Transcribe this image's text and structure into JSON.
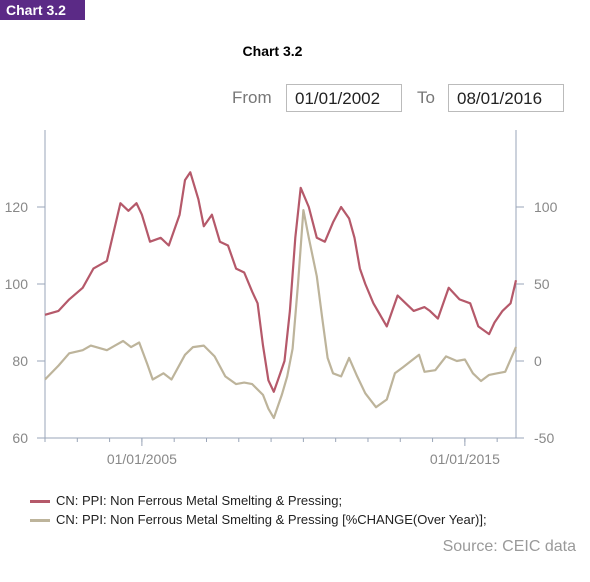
{
  "badge": "Chart 3.2",
  "controls": {
    "from_label": "From",
    "from_value": "01/01/2002",
    "to_label": "To",
    "to_value": "08/01/2016"
  },
  "source": "Source: CEIC data",
  "colors": {
    "ppi": "#b5596a",
    "yoy": "#bdb49b",
    "axis": "#9aa5b8"
  },
  "chart_data": {
    "type": "line",
    "title": "Chart 3.2",
    "x_range": [
      "01/01/2002",
      "08/01/2016"
    ],
    "x_ticks": [
      "01/01/2005",
      "01/01/2015"
    ],
    "y_left": {
      "ticks": [
        60,
        80,
        100,
        120
      ],
      "range": [
        60,
        140
      ]
    },
    "y_right": {
      "ticks": [
        -50,
        0,
        50,
        100
      ],
      "range": [
        -50,
        150
      ]
    },
    "grid": false,
    "legend": "bottom",
    "series": [
      {
        "name": "CN: PPI: Non Ferrous Metal Smelting & Pressing;",
        "axis": "left",
        "points": [
          [
            "2002-01",
            92
          ],
          [
            "2002-06",
            93
          ],
          [
            "2002-10",
            96
          ],
          [
            "2003-03",
            99
          ],
          [
            "2003-07",
            104
          ],
          [
            "2003-12",
            106
          ],
          [
            "2004-02",
            112
          ],
          [
            "2004-05",
            121
          ],
          [
            "2004-08",
            119
          ],
          [
            "2004-11",
            121
          ],
          [
            "2005-01",
            118
          ],
          [
            "2005-04",
            111
          ],
          [
            "2005-08",
            112
          ],
          [
            "2005-11",
            110
          ],
          [
            "2006-03",
            118
          ],
          [
            "2006-05",
            127
          ],
          [
            "2006-07",
            129
          ],
          [
            "2006-10",
            122
          ],
          [
            "2006-12",
            115
          ],
          [
            "2007-03",
            118
          ],
          [
            "2007-06",
            111
          ],
          [
            "2007-09",
            110
          ],
          [
            "2007-12",
            104
          ],
          [
            "2008-03",
            103
          ],
          [
            "2008-06",
            98
          ],
          [
            "2008-08",
            95
          ],
          [
            "2008-10",
            84
          ],
          [
            "2008-12",
            75
          ],
          [
            "2009-02",
            72
          ],
          [
            "2009-04",
            76
          ],
          [
            "2009-06",
            80
          ],
          [
            "2009-08",
            93
          ],
          [
            "2009-10",
            112
          ],
          [
            "2009-12",
            125
          ],
          [
            "2010-03",
            120
          ],
          [
            "2010-06",
            112
          ],
          [
            "2010-09",
            111
          ],
          [
            "2010-12",
            116
          ],
          [
            "2011-03",
            120
          ],
          [
            "2011-06",
            117
          ],
          [
            "2011-08",
            112
          ],
          [
            "2011-10",
            104
          ],
          [
            "2011-12",
            100
          ],
          [
            "2012-03",
            95
          ],
          [
            "2012-08",
            89
          ],
          [
            "2012-12",
            97
          ],
          [
            "2013-03",
            95
          ],
          [
            "2013-06",
            93
          ],
          [
            "2013-10",
            94
          ],
          [
            "2013-12",
            93
          ],
          [
            "2014-03",
            91
          ],
          [
            "2014-07",
            99
          ],
          [
            "2014-11",
            96
          ],
          [
            "2015-03",
            95
          ],
          [
            "2015-06",
            89
          ],
          [
            "2015-10",
            87
          ],
          [
            "2015-12",
            90
          ],
          [
            "2016-03",
            93
          ],
          [
            "2016-06",
            95
          ],
          [
            "2016-08",
            101
          ]
        ]
      },
      {
        "name": "CN: PPI: Non Ferrous Metal Smelting & Pressing [%CHANGE(Over Year)];",
        "axis": "right",
        "points": [
          [
            "2002-01",
            -12
          ],
          [
            "2002-06",
            -3
          ],
          [
            "2002-10",
            5
          ],
          [
            "2003-03",
            7
          ],
          [
            "2003-06",
            10
          ],
          [
            "2003-12",
            7
          ],
          [
            "2004-03",
            10
          ],
          [
            "2004-06",
            13
          ],
          [
            "2004-09",
            9
          ],
          [
            "2004-12",
            12
          ],
          [
            "2005-03",
            -2
          ],
          [
            "2005-05",
            -12
          ],
          [
            "2005-09",
            -8
          ],
          [
            "2005-12",
            -12
          ],
          [
            "2006-05",
            4
          ],
          [
            "2006-08",
            9
          ],
          [
            "2006-12",
            10
          ],
          [
            "2007-04",
            3
          ],
          [
            "2007-08",
            -10
          ],
          [
            "2007-12",
            -15
          ],
          [
            "2008-03",
            -14
          ],
          [
            "2008-06",
            -15
          ],
          [
            "2008-10",
            -22
          ],
          [
            "2008-12",
            -31
          ],
          [
            "2009-02",
            -37
          ],
          [
            "2009-05",
            -22
          ],
          [
            "2009-07",
            -10
          ],
          [
            "2009-09",
            8
          ],
          [
            "2009-11",
            50
          ],
          [
            "2010-01",
            98
          ],
          [
            "2010-03",
            80
          ],
          [
            "2010-06",
            55
          ],
          [
            "2010-08",
            28
          ],
          [
            "2010-10",
            2
          ],
          [
            "2010-12",
            -8
          ],
          [
            "2011-03",
            -10
          ],
          [
            "2011-06",
            2
          ],
          [
            "2011-09",
            -10
          ],
          [
            "2011-12",
            -21
          ],
          [
            "2012-04",
            -30
          ],
          [
            "2012-08",
            -25
          ],
          [
            "2012-11",
            -8
          ],
          [
            "2013-02",
            -4
          ],
          [
            "2013-05",
            0
          ],
          [
            "2013-08",
            4
          ],
          [
            "2013-10",
            -7
          ],
          [
            "2014-02",
            -6
          ],
          [
            "2014-06",
            3
          ],
          [
            "2014-10",
            0
          ],
          [
            "2015-01",
            1
          ],
          [
            "2015-04",
            -8
          ],
          [
            "2015-07",
            -13
          ],
          [
            "2015-10",
            -9
          ],
          [
            "2016-01",
            -8
          ],
          [
            "2016-04",
            -7
          ],
          [
            "2016-08",
            9
          ]
        ]
      }
    ]
  }
}
